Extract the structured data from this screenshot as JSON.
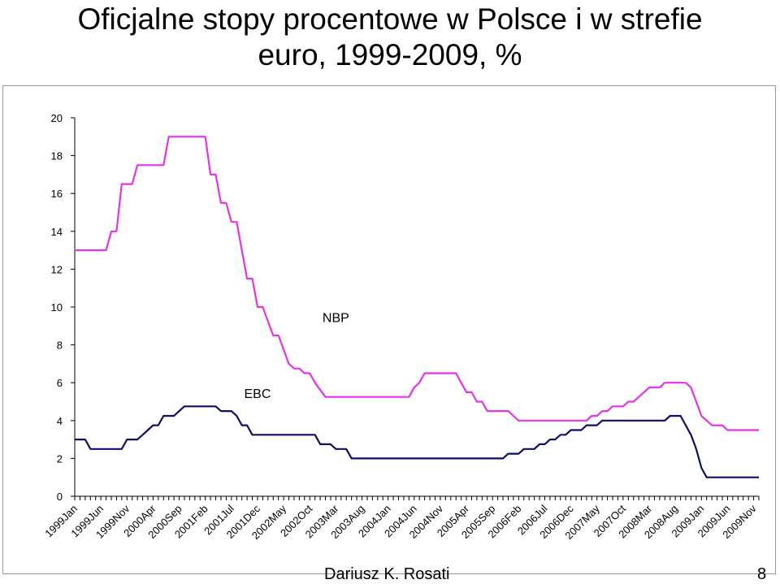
{
  "page": {
    "title_line1": "Oficjalne stopy procentowe w Polsce i w strefie",
    "title_line2": "euro, 1999-2009, %",
    "author": "Dariusz K. Rosati",
    "page_number": "8"
  },
  "chart_data": {
    "type": "line",
    "title": "",
    "xlabel": "",
    "ylabel": "",
    "ylim": [
      0,
      20
    ],
    "yticks": [
      0,
      2,
      4,
      6,
      8,
      10,
      12,
      14,
      16,
      18,
      20
    ],
    "x_start": "1999Jan",
    "x_end": "2009Dec",
    "x_tick_labels": [
      "1999Jan",
      "1999Jun",
      "1999Nov",
      "2000Apr",
      "2000Sep",
      "2001Feb",
      "2001Jul",
      "2001Dec",
      "2002May",
      "2002Oct",
      "2003Mar",
      "2003Aug",
      "2004Jan",
      "2004Jun",
      "2004Nov",
      "2005Apr",
      "2005Sep",
      "2006Feb",
      "2006Jul",
      "2006Dec",
      "2007May",
      "2007Oct",
      "2008Mar",
      "2008Aug",
      "2009Jan",
      "2009Jun",
      "2009Nov"
    ],
    "grid": false,
    "legend": "inline labels",
    "series": [
      {
        "name": "NBP",
        "color": "#e533e5",
        "label_at": [
          "2003Mar",
          9.2
        ],
        "points": [
          [
            "1999Jan",
            13
          ],
          [
            "1999Jul",
            13
          ],
          [
            "1999Aug",
            14
          ],
          [
            "1999Sep",
            14
          ],
          [
            "1999Oct",
            16.5
          ],
          [
            "1999Dec",
            16.5
          ],
          [
            "2000Jan",
            17.5
          ],
          [
            "2000Jun",
            17.5
          ],
          [
            "2000Jul",
            19
          ],
          [
            "2001Feb",
            19
          ],
          [
            "2001Mar",
            17
          ],
          [
            "2001Apr",
            17
          ],
          [
            "2001May",
            15.5
          ],
          [
            "2001Jun",
            15.5
          ],
          [
            "2001Jul",
            14.5
          ],
          [
            "2001Aug",
            14.5
          ],
          [
            "2001Oct",
            11.5
          ],
          [
            "2001Nov",
            11.5
          ],
          [
            "2001Dec",
            10
          ],
          [
            "2002Jan",
            10
          ],
          [
            "2002Mar",
            8.5
          ],
          [
            "2002Apr",
            8.5
          ],
          [
            "2002Jun",
            7
          ],
          [
            "2002Jul",
            6.75
          ],
          [
            "2002Aug",
            6.75
          ],
          [
            "2002Sep",
            6.5
          ],
          [
            "2002Oct",
            6.5
          ],
          [
            "2002Nov",
            6
          ],
          [
            "2003Jan",
            5.25
          ],
          [
            "2004May",
            5.25
          ],
          [
            "2004Jun",
            5.75
          ],
          [
            "2004Jul",
            6
          ],
          [
            "2004Aug",
            6.5
          ],
          [
            "2005Feb",
            6.5
          ],
          [
            "2005Mar",
            6
          ],
          [
            "2005Apr",
            5.5
          ],
          [
            "2005May",
            5.5
          ],
          [
            "2005Jun",
            5
          ],
          [
            "2005Jul",
            5
          ],
          [
            "2005Aug",
            4.5
          ],
          [
            "2005Dec",
            4.5
          ],
          [
            "2006Jan",
            4.25
          ],
          [
            "2006Feb",
            4
          ],
          [
            "2007Mar",
            4
          ],
          [
            "2007Apr",
            4.25
          ],
          [
            "2007May",
            4.25
          ],
          [
            "2007Jun",
            4.5
          ],
          [
            "2007Jul",
            4.5
          ],
          [
            "2007Aug",
            4.75
          ],
          [
            "2007Oct",
            4.75
          ],
          [
            "2007Nov",
            5
          ],
          [
            "2007Dec",
            5
          ],
          [
            "2008Jan",
            5.25
          ],
          [
            "2008Feb",
            5.5
          ],
          [
            "2008Mar",
            5.75
          ],
          [
            "2008May",
            5.75
          ],
          [
            "2008Jun",
            6
          ],
          [
            "2008Oct",
            6
          ],
          [
            "2008Nov",
            5.75
          ],
          [
            "2008Dec",
            5
          ],
          [
            "2009Jan",
            4.25
          ],
          [
            "2009Feb",
            4
          ],
          [
            "2009Mar",
            3.75
          ],
          [
            "2009May",
            3.75
          ],
          [
            "2009Jun",
            3.5
          ],
          [
            "2009Dec",
            3.5
          ]
        ]
      },
      {
        "name": "EBC",
        "color": "#0d0d66",
        "label_at": [
          "2001Dec",
          5.2
        ],
        "points": [
          [
            "1999Jan",
            3
          ],
          [
            "1999Mar",
            3
          ],
          [
            "1999Apr",
            2.5
          ],
          [
            "1999Oct",
            2.5
          ],
          [
            "1999Nov",
            3
          ],
          [
            "2000Jan",
            3
          ],
          [
            "2000Feb",
            3.25
          ],
          [
            "2000Mar",
            3.5
          ],
          [
            "2000Apr",
            3.75
          ],
          [
            "2000May",
            3.75
          ],
          [
            "2000Jun",
            4.25
          ],
          [
            "2000Aug",
            4.25
          ],
          [
            "2000Sep",
            4.5
          ],
          [
            "2000Oct",
            4.75
          ],
          [
            "2001Apr",
            4.75
          ],
          [
            "2001May",
            4.5
          ],
          [
            "2001Jul",
            4.5
          ],
          [
            "2001Aug",
            4.25
          ],
          [
            "2001Sep",
            3.75
          ],
          [
            "2001Oct",
            3.75
          ],
          [
            "2001Nov",
            3.25
          ],
          [
            "2002Nov",
            3.25
          ],
          [
            "2002Dec",
            2.75
          ],
          [
            "2003Feb",
            2.75
          ],
          [
            "2003Mar",
            2.5
          ],
          [
            "2003May",
            2.5
          ],
          [
            "2003Jun",
            2
          ],
          [
            "2005Nov",
            2
          ],
          [
            "2005Dec",
            2.25
          ],
          [
            "2006Feb",
            2.25
          ],
          [
            "2006Mar",
            2.5
          ],
          [
            "2006May",
            2.5
          ],
          [
            "2006Jun",
            2.75
          ],
          [
            "2006Jul",
            2.75
          ],
          [
            "2006Aug",
            3
          ],
          [
            "2006Sep",
            3
          ],
          [
            "2006Oct",
            3.25
          ],
          [
            "2006Nov",
            3.25
          ],
          [
            "2006Dec",
            3.5
          ],
          [
            "2007Feb",
            3.5
          ],
          [
            "2007Mar",
            3.75
          ],
          [
            "2007May",
            3.75
          ],
          [
            "2007Jun",
            4
          ],
          [
            "2008Jun",
            4
          ],
          [
            "2008Jul",
            4.25
          ],
          [
            "2008Sep",
            4.25
          ],
          [
            "2008Oct",
            3.75
          ],
          [
            "2008Nov",
            3.25
          ],
          [
            "2008Dec",
            2.5
          ],
          [
            "2009Jan",
            1.5
          ],
          [
            "2009Feb",
            1
          ],
          [
            "2009Dec",
            1
          ]
        ]
      }
    ]
  }
}
